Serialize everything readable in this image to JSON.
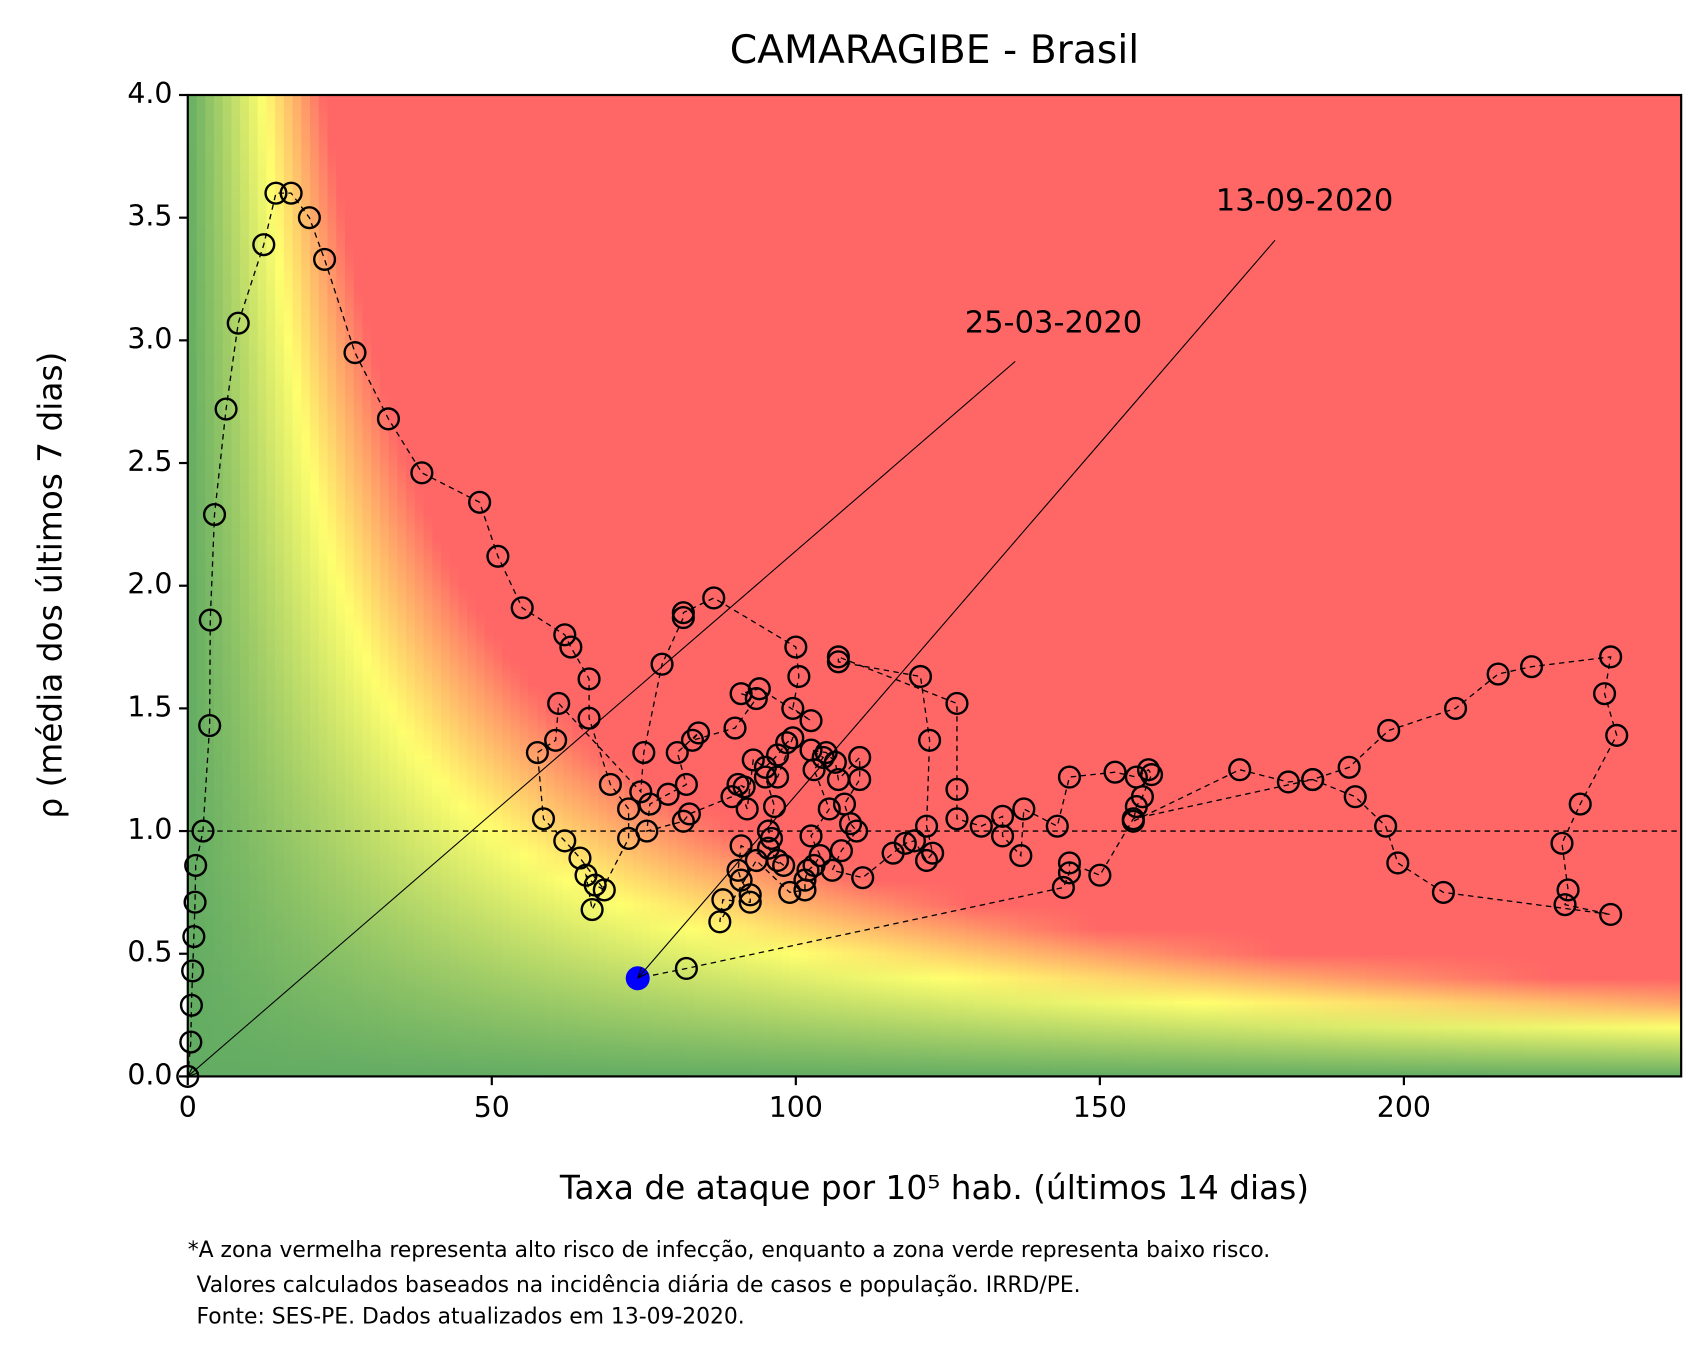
{
  "chart_data": {
    "type": "scatter",
    "title": "CAMARAGIBE - Brasil",
    "xlabel": "Taxa de ataque por 10⁵ hab. (últimos 14 dias)",
    "ylabel": "ρ (média dos últimos 7 dias)",
    "footnote": [
      "*A zona vermelha representa alto risco de infecção, enquanto a zona verde representa baixo risco.",
      "Valores calculados baseados na incidência diária de casos e população. IRRD/PE.",
      "Fonte: SES-PE. Dados atualizados em 13-09-2020."
    ],
    "xlim": [
      0,
      245.6
    ],
    "ylim": [
      0,
      4
    ],
    "xticks": [
      0,
      50,
      100,
      150,
      200
    ],
    "yticks": [
      {
        "value": 0,
        "label": "0.0"
      },
      0.5,
      {
        "value": 1,
        "label": "1.0"
      },
      1.5,
      {
        "value": 2,
        "label": "2.0"
      },
      2.5,
      {
        "value": 3,
        "label": "3.0"
      },
      3.5,
      {
        "value": 4,
        "label": "4.0"
      }
    ],
    "hline": 1,
    "highlight_color": "#0000ff",
    "annotations": [
      {
        "text": "25-03-2020",
        "x": 0,
        "y": 0
      },
      {
        "text": "13-09-2020",
        "x": 74,
        "y": 0.4
      }
    ],
    "series": [
      {
        "color": "#000000",
        "x": [
          0,
          0.5,
          0.6,
          0.8,
          1,
          1.2,
          1.3,
          2.5,
          3.6,
          3.7,
          4.4,
          6.3,
          8.3,
          12.5,
          14.5,
          17,
          20,
          22.5,
          27.5,
          33,
          38.5,
          48,
          51,
          55,
          62,
          63,
          66,
          66,
          69.5,
          72.5,
          72.5,
          66.5,
          65.5,
          67,
          68.5,
          64.5,
          62,
          58.5,
          57.5,
          60.5,
          61,
          74.5,
          75,
          78,
          81.5,
          81.5,
          86.5,
          100,
          100.5,
          99.5,
          102.5,
          94,
          91,
          93.5,
          90,
          83,
          84,
          80.5,
          82,
          79,
          76,
          75.5,
          81.5,
          82.5,
          89.5,
          91.5,
          90.5,
          92,
          93,
          95,
          97,
          98.5,
          99.5,
          97,
          95,
          96.5,
          95.5,
          96,
          95.5,
          97,
          98,
          91,
          90.5,
          91,
          92.5,
          92.5,
          88,
          87.5,
          93.5,
          99,
          101.5,
          101.5,
          102,
          103,
          104,
          102.5,
          105.5,
          103,
          104.5,
          102.5,
          105,
          106.5,
          107,
          110.5,
          110.5,
          108,
          109,
          110,
          107.5,
          106,
          111,
          116,
          118,
          119.5,
          121.5,
          122.5,
          121.5,
          122,
          120.5,
          107,
          107,
          126.5,
          126.5,
          126.5,
          130.5,
          134,
          134,
          137,
          137.5,
          143,
          145,
          152.5,
          156,
          158,
          158.5,
          157,
          156,
          155.5,
          173,
          181,
          185,
          191,
          197.5,
          208.5,
          215.5,
          221,
          234,
          233,
          235,
          229,
          226,
          227,
          226.5,
          234,
          206.5,
          199,
          197,
          192,
          185,
          155.5,
          150,
          145,
          145,
          144,
          82,
          74
        ],
        "values": [
          0,
          0.14,
          0.29,
          0.43,
          0.57,
          0.71,
          0.86,
          1.0,
          1.43,
          1.86,
          2.29,
          2.72,
          3.07,
          3.39,
          3.6,
          3.6,
          3.5,
          3.33,
          2.95,
          2.68,
          2.46,
          2.34,
          2.12,
          1.91,
          1.8,
          1.75,
          1.62,
          1.46,
          1.19,
          1.09,
          0.97,
          0.68,
          0.82,
          0.78,
          0.76,
          0.89,
          0.96,
          1.05,
          1.32,
          1.37,
          1.52,
          1.16,
          1.32,
          1.68,
          1.87,
          1.89,
          1.95,
          1.75,
          1.63,
          1.5,
          1.45,
          1.58,
          1.56,
          1.54,
          1.42,
          1.37,
          1.4,
          1.32,
          1.19,
          1.15,
          1.11,
          1.0,
          1.04,
          1.07,
          1.14,
          1.18,
          1.19,
          1.09,
          1.29,
          1.26,
          1.31,
          1.36,
          1.38,
          1.22,
          1.22,
          1.1,
          1.0,
          0.97,
          0.93,
          0.88,
          0.86,
          0.94,
          0.84,
          0.8,
          0.74,
          0.71,
          0.72,
          0.63,
          0.88,
          0.75,
          0.76,
          0.8,
          0.84,
          0.86,
          0.9,
          0.98,
          1.09,
          1.25,
          1.3,
          1.33,
          1.32,
          1.28,
          1.21,
          1.3,
          1.21,
          1.11,
          1.03,
          1.0,
          0.92,
          0.84,
          0.81,
          0.91,
          0.95,
          0.96,
          0.88,
          0.91,
          1.02,
          1.37,
          1.63,
          1.69,
          1.71,
          1.52,
          1.17,
          1.05,
          1.02,
          1.06,
          0.98,
          0.9,
          1.09,
          1.02,
          1.22,
          1.24,
          1.22,
          1.25,
          1.23,
          1.14,
          1.1,
          1.04,
          1.25,
          1.2,
          1.21,
          1.26,
          1.41,
          1.5,
          1.64,
          1.67,
          1.71,
          1.56,
          1.39,
          1.11,
          0.95,
          0.76,
          0.7,
          0.66,
          0.75,
          0.87,
          1.02,
          1.14,
          1.21,
          1.05,
          0.82,
          0.87,
          0.83,
          0.77,
          0.44,
          0.4
        ]
      }
    ]
  }
}
